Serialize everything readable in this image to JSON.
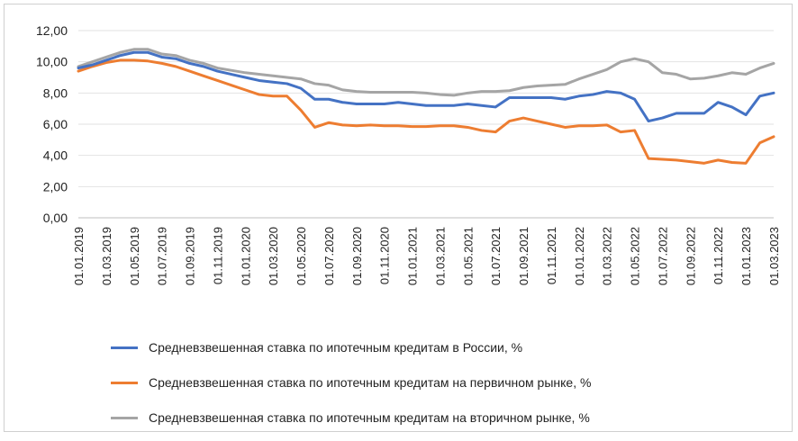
{
  "chart_data": {
    "type": "line",
    "title": "",
    "xlabel": "",
    "ylabel": "",
    "ylim": [
      0,
      12
    ],
    "yticks": [
      "0,00",
      "2,00",
      "4,00",
      "6,00",
      "8,00",
      "10,00",
      "12,00"
    ],
    "grid": "horizontal",
    "legend_position": "bottom",
    "x_tick_labels": [
      "01.01.2019",
      "01.03.2019",
      "01.05.2019",
      "01.07.2019",
      "01.09.2019",
      "01.11.2019",
      "01.01.2020",
      "01.03.2020",
      "01.05.2020",
      "01.07.2020",
      "01.09.2020",
      "01.11.2020",
      "01.01.2021",
      "01.03.2021",
      "01.05.2021",
      "01.07.2021",
      "01.09.2021",
      "01.11.2021",
      "01.01.2022",
      "01.03.2022",
      "01.05.2022",
      "01.07.2022",
      "01.09.2022",
      "01.11.2022",
      "01.01.2023",
      "01.03.2023"
    ],
    "x": [
      "01.01.2019",
      "01.02.2019",
      "01.03.2019",
      "01.04.2019",
      "01.05.2019",
      "01.06.2019",
      "01.07.2019",
      "01.08.2019",
      "01.09.2019",
      "01.10.2019",
      "01.11.2019",
      "01.12.2019",
      "01.01.2020",
      "01.02.2020",
      "01.03.2020",
      "01.04.2020",
      "01.05.2020",
      "01.06.2020",
      "01.07.2020",
      "01.08.2020",
      "01.09.2020",
      "01.10.2020",
      "01.11.2020",
      "01.12.2020",
      "01.01.2021",
      "01.02.2021",
      "01.03.2021",
      "01.04.2021",
      "01.05.2021",
      "01.06.2021",
      "01.07.2021",
      "01.08.2021",
      "01.09.2021",
      "01.10.2021",
      "01.11.2021",
      "01.12.2021",
      "01.01.2022",
      "01.02.2022",
      "01.03.2022",
      "01.04.2022",
      "01.05.2022",
      "01.06.2022",
      "01.07.2022",
      "01.08.2022",
      "01.09.2022",
      "01.10.2022",
      "01.11.2022",
      "01.12.2022",
      "01.01.2023",
      "01.02.2023",
      "01.03.2023"
    ],
    "series": [
      {
        "name": "Средневзвешенная ставка по ипотечным кредитам в России, %",
        "color": "#4472C4",
        "values": [
          9.6,
          9.8,
          10.1,
          10.4,
          10.6,
          10.6,
          10.3,
          10.2,
          9.9,
          9.7,
          9.4,
          9.2,
          9.0,
          8.8,
          8.7,
          8.6,
          8.3,
          7.6,
          7.6,
          7.4,
          7.3,
          7.3,
          7.3,
          7.4,
          7.3,
          7.2,
          7.2,
          7.2,
          7.3,
          7.2,
          7.1,
          7.7,
          7.7,
          7.7,
          7.7,
          7.6,
          7.8,
          7.9,
          8.1,
          8.0,
          7.6,
          6.2,
          6.4,
          6.7,
          6.7,
          6.7,
          7.4,
          7.1,
          6.6,
          7.8,
          8.0
        ]
      },
      {
        "name": "Средневзвешенная ставка по ипотечным кредитам на первичном рынке, %",
        "color": "#ED7D31",
        "values": [
          9.4,
          9.7,
          9.95,
          10.1,
          10.1,
          10.05,
          9.9,
          9.7,
          9.4,
          9.1,
          8.8,
          8.5,
          8.2,
          7.9,
          7.8,
          7.8,
          6.9,
          5.8,
          6.1,
          5.95,
          5.9,
          5.95,
          5.9,
          5.9,
          5.85,
          5.85,
          5.9,
          5.9,
          5.8,
          5.6,
          5.5,
          6.2,
          6.4,
          6.2,
          6.0,
          5.8,
          5.9,
          5.9,
          5.95,
          5.5,
          5.6,
          3.8,
          3.75,
          3.7,
          3.6,
          3.5,
          3.7,
          3.55,
          3.5,
          4.8,
          5.2
        ]
      },
      {
        "name": "Средневзвешенная ставка по ипотечным кредитам на вторичном рынке, %",
        "color": "#A5A5A5",
        "values": [
          9.7,
          10.0,
          10.3,
          10.6,
          10.8,
          10.8,
          10.5,
          10.4,
          10.1,
          9.9,
          9.6,
          9.45,
          9.3,
          9.2,
          9.1,
          9.0,
          8.9,
          8.6,
          8.5,
          8.2,
          8.1,
          8.05,
          8.05,
          8.05,
          8.05,
          8.0,
          7.9,
          7.85,
          8.0,
          8.1,
          8.1,
          8.15,
          8.35,
          8.45,
          8.5,
          8.55,
          8.9,
          9.2,
          9.5,
          10.0,
          10.2,
          10.0,
          9.3,
          9.2,
          8.9,
          8.95,
          9.1,
          9.3,
          9.2,
          9.6,
          9.9
        ]
      }
    ]
  }
}
